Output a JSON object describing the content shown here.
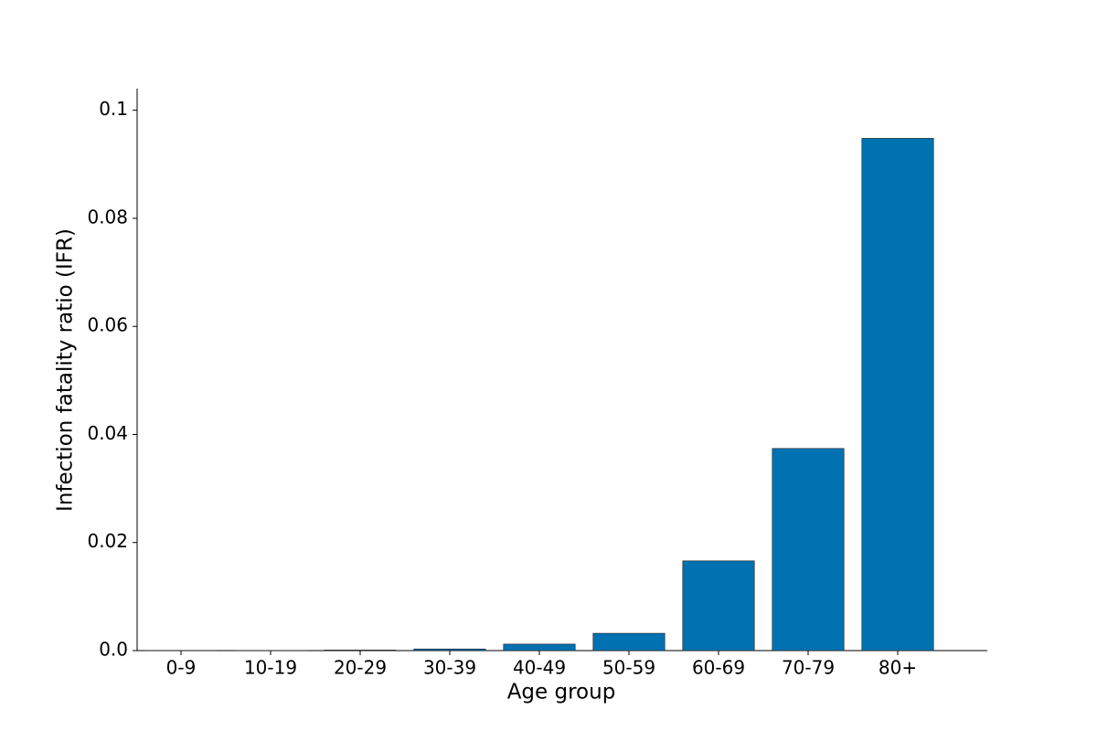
{
  "chart_data": {
    "type": "bar",
    "x_label": "Age group",
    "y_label": "Infection fatality ratio (IFR)",
    "categories": [
      "0-9",
      "10-19",
      "20-29",
      "30-39",
      "40-49",
      "50-59",
      "60-69",
      "70-79",
      "80+"
    ],
    "values": [
      1e-05,
      3e-05,
      0.0001,
      0.0003,
      0.0012,
      0.0032,
      0.0166,
      0.0374,
      0.0948
    ],
    "color": "#0072b2",
    "ylim": [
      0,
      0.104
    ],
    "yticks": [
      {
        "value": 0,
        "label": "0.0"
      },
      0.02,
      0.04,
      0.06,
      0.08,
      0.1
    ],
    "grid": false
  }
}
